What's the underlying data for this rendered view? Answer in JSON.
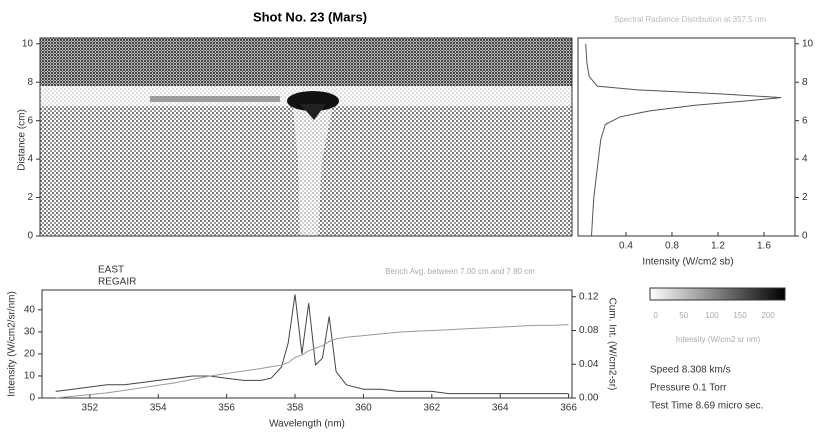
{
  "chart_data": [
    {
      "type": "image",
      "title": "Shot No. 23 (Mars)",
      "subtitle": "Spectral Radiance Distribution at 357.5 nm",
      "ylabel": "Distance (cm)",
      "ylim": [
        0,
        10.3
      ],
      "yticks": [
        0,
        2,
        4,
        6,
        8,
        10
      ]
    },
    {
      "type": "line",
      "xlabel": "Intensity (W/cm2 sb)",
      "color": "#555555",
      "x": [
        0.1,
        0.11,
        0.12,
        0.14,
        0.16,
        0.18,
        0.22,
        0.35,
        0.6,
        1.0,
        1.4,
        1.75,
        1.2,
        0.5,
        0.15,
        0.08,
        0.06,
        0.05
      ],
      "values": [
        0,
        1,
        2,
        3,
        4,
        5,
        5.8,
        6.2,
        6.5,
        6.8,
        7.0,
        7.2,
        7.4,
        7.6,
        7.8,
        8.3,
        9,
        10
      ],
      "xlim": [
        0,
        1.87
      ],
      "xticks": [
        0.4,
        0.8,
        1.2,
        1.6
      ],
      "ylim": [
        0,
        10.3
      ],
      "yticks": [
        0,
        2,
        4,
        6,
        8,
        10
      ]
    },
    {
      "type": "line",
      "xlabel": "Wavelength (nm)",
      "ylabel": "Intensity (W/cm2/sr/nm)",
      "y2label": "Cum. Int. (W/cm2-sr)",
      "x": [
        351,
        351.5,
        352,
        352.5,
        353,
        353.5,
        354,
        354.5,
        355,
        355.5,
        356,
        356.5,
        357,
        357.3,
        357.6,
        357.8,
        358.0,
        358.2,
        358.4,
        358.6,
        358.8,
        359.0,
        359.2,
        359.5,
        360,
        360.5,
        361,
        361.5,
        362,
        362.5,
        363,
        363.5,
        364,
        364.5,
        365,
        365.5,
        366
      ],
      "series": [
        {
          "color": "#444444",
          "values": [
            3,
            4,
            5,
            6,
            6,
            7,
            8,
            9,
            10,
            10,
            9,
            8,
            8,
            9,
            14,
            25,
            47,
            20,
            43,
            15,
            18,
            37,
            12,
            6,
            4,
            4,
            3,
            3,
            3,
            2,
            2,
            2,
            2,
            2,
            2,
            2,
            2
          ]
        },
        {
          "color": "#999999",
          "axis": "y2",
          "values": [
            0,
            0.002,
            0.004,
            0.006,
            0.009,
            0.012,
            0.015,
            0.018,
            0.022,
            0.026,
            0.029,
            0.032,
            0.035,
            0.037,
            0.039,
            0.042,
            0.048,
            0.051,
            0.056,
            0.059,
            0.062,
            0.067,
            0.07,
            0.072,
            0.074,
            0.076,
            0.078,
            0.079,
            0.08,
            0.081,
            0.082,
            0.083,
            0.084,
            0.085,
            0.086,
            0.086,
            0.087
          ]
        }
      ],
      "xlim": [
        350.6,
        366.1
      ],
      "xticks": [
        352,
        354,
        356,
        358,
        360,
        362,
        364,
        366
      ],
      "ylim": [
        0,
        49
      ],
      "yticks": [
        0,
        10,
        20,
        30,
        40
      ],
      "y2lim": [
        0,
        0.128
      ],
      "y2ticks": [
        {
          "value": 0,
          "label": "0.00"
        },
        {
          "value": 0.04,
          "label": "0.04"
        },
        {
          "value": 0.08,
          "label": "0.08"
        },
        0.12
      ]
    },
    {
      "type": "colorbar",
      "label": "Intensity (W/cm2 sr nm)",
      "clim": [
        -10,
        230
      ],
      "ticks": [
        0,
        50,
        100,
        150,
        200
      ],
      "colors": [
        "#ffffff",
        "#000000"
      ]
    }
  ],
  "labels": {
    "east": "EAST",
    "regair": "REGAIR",
    "bench": "Bench Avg. between 7.00 cm and 7.80 cm"
  },
  "run_info": [
    "Speed  8.308 km/s",
    "Pressure  0.1 Torr",
    "Test Time  8.69 micro sec."
  ]
}
